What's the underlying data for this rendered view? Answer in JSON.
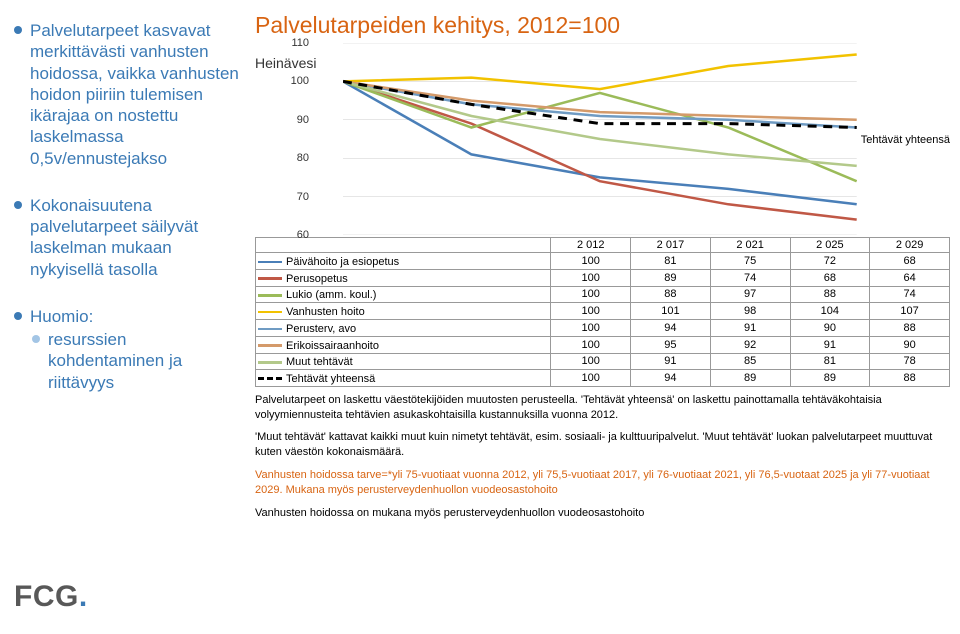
{
  "left": {
    "bullets": [
      {
        "level": 0,
        "text": "Palvelutarpeet kasvavat merkittävästi vanhusten hoidossa, vaikka vanhusten hoidon piiriin tulemisen ikärajaa on nostettu laskelmassa 0,5v/ennustejakso",
        "color": "#3b7ab5"
      },
      {
        "level": 0,
        "text": "Kokonaisuutena palvelutarpeet säilyvät laskelman mukaan nykyisellä tasolla",
        "color": "#3b7ab5"
      },
      {
        "level": 0,
        "text": "Huomio:",
        "color": "#3b7ab5"
      },
      {
        "level": 1,
        "text": "resurssien kohdentaminen ja riittävyys",
        "color": "#3b7ab5"
      }
    ],
    "logo": "FCG"
  },
  "chart": {
    "title": "Palvelutarpeiden kehitys, 2012=100",
    "location_label": "Heinävesi",
    "right_label": "Tehtävät yhteensä",
    "type": "line",
    "ylim": [
      60,
      110
    ],
    "ytick_step": 10,
    "yticks": [
      60,
      70,
      80,
      90,
      100,
      110
    ],
    "x_categories": [
      "2 012",
      "2 017",
      "2 021",
      "2 025",
      "2 029"
    ],
    "background_color": "#ffffff",
    "grid_color": "#cccccc",
    "line_width": 2.5,
    "series": [
      {
        "name": "Päivähoito ja esiopetus",
        "color": "#4a7fb8",
        "dash": false,
        "values": [
          100,
          81,
          75,
          72,
          68
        ]
      },
      {
        "name": "Perusopetus",
        "color": "#c05846",
        "dash": false,
        "values": [
          100,
          89,
          74,
          68,
          64
        ]
      },
      {
        "name": "Lukio (amm. koul.)",
        "color": "#9bbb59",
        "dash": false,
        "values": [
          100,
          88,
          97,
          88,
          74
        ]
      },
      {
        "name": "Vanhusten hoito",
        "color": "#f2c200",
        "dash": false,
        "values": [
          100,
          101,
          98,
          104,
          107
        ]
      },
      {
        "name": "Perusterv, avo",
        "color": "#6f9bc3",
        "dash": false,
        "values": [
          100,
          94,
          91,
          90,
          88
        ]
      },
      {
        "name": "Erikoissairaanhoito",
        "color": "#d49a6a",
        "dash": false,
        "values": [
          100,
          95,
          92,
          91,
          90
        ]
      },
      {
        "name": "Muut tehtävät",
        "color": "#b3c98a",
        "dash": false,
        "values": [
          100,
          91,
          85,
          81,
          78
        ]
      },
      {
        "name": "Tehtävät yhteensä",
        "color": "#000000",
        "dash": true,
        "values": [
          100,
          94,
          89,
          89,
          88
        ]
      }
    ]
  },
  "footnotes": [
    {
      "text": "Palvelutarpeet on laskettu väestötekijöiden muutosten perusteella. 'Tehtävät yhteensä' on laskettu painottamalla tehtäväkohtaisia volyymiennusteita tehtävien asukaskohtaisilla kustannuksilla vuonna 2012.",
      "color": "#000000"
    },
    {
      "text": "'Muut tehtävät' kattavat kaikki muut kuin nimetyt tehtävät, esim. sosiaali- ja kulttuuripalvelut. 'Muut tehtävät' luokan palvelutarpeet muuttuvat kuten väestön kokonaismäärä.",
      "color": "#000000"
    },
    {
      "text": "Vanhusten hoidossa tarve=*yli 75-vuotiaat vuonna 2012, yli 75,5-vuotiaat 2017, yli 76-vuotiaat 2021, yli 76,5-vuotaat 2025 ja yli 77-vuotiaat 2029. Mukana myös perusterveydenhuollon vuodeosastohoito",
      "color": "#d86412"
    },
    {
      "text": "Vanhusten hoidossa on mukana myös perusterveydenhuollon vuodeosastohoito",
      "color": "#000000"
    }
  ]
}
